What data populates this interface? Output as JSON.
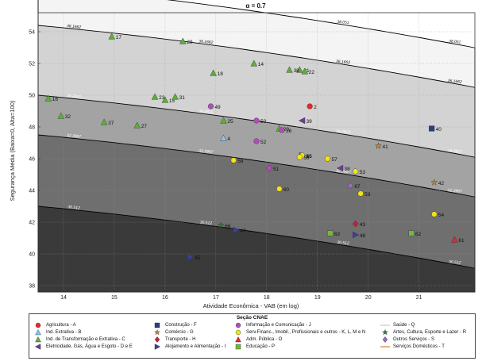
{
  "chart_data": {
    "type": "scatter",
    "title": "α = 0.7",
    "xlabel": "Atividade Econômica - VAB (em log)",
    "ylabel": "Segurança Média (Baixa=0, Alta=100)",
    "xlim": [
      13.5,
      22.1
    ],
    "ylim": [
      37.6,
      55.2
    ],
    "xticks": [
      14,
      15,
      16,
      17,
      18,
      19,
      20,
      21
    ],
    "yticks": [
      38,
      40,
      42,
      44,
      46,
      48,
      50,
      52,
      54
    ],
    "grid": true,
    "contours": [
      {
        "label": "38.051",
        "color": "#f4f4f4",
        "k": 0.3,
        "y0": 56.9
      },
      {
        "label": "36.1662",
        "color": "#d3d3d3",
        "k": 0.3,
        "y0": 54.4
      },
      {
        "label": "34.2815",
        "color": "#a3a3a3",
        "k": 0.3,
        "y0": 50.0
      },
      {
        "label": "32.3967",
        "color": "#6f6f6f",
        "k": 0.3,
        "y0": 47.5
      },
      {
        "label": "30.512",
        "color": "#3a3a3a",
        "k": 0.3,
        "y0": 43.0
      }
    ],
    "points": [
      {
        "id": "2",
        "x": 18.85,
        "y": 49.3,
        "sec": "A"
      },
      {
        "id": "4",
        "x": 17.15,
        "y": 47.3,
        "sec": "B"
      },
      {
        "id": "14",
        "x": 17.75,
        "y": 52.0,
        "sec": "C"
      },
      {
        "id": "15",
        "x": 16.0,
        "y": 49.7,
        "sec": "C"
      },
      {
        "id": "16",
        "x": 13.7,
        "y": 49.8,
        "sec": "C"
      },
      {
        "id": "17",
        "x": 14.95,
        "y": 53.7,
        "sec": "C"
      },
      {
        "id": "18",
        "x": 16.95,
        "y": 51.4,
        "sec": "C"
      },
      {
        "id": "20",
        "x": 18.25,
        "y": 47.9,
        "sec": "C"
      },
      {
        "id": "21",
        "x": 18.65,
        "y": 51.6,
        "sec": "C"
      },
      {
        "id": "22",
        "x": 18.75,
        "y": 51.5,
        "sec": "C"
      },
      {
        "id": "23",
        "x": 15.8,
        "y": 49.9,
        "sec": "C"
      },
      {
        "id": "25",
        "x": 17.15,
        "y": 48.4,
        "sec": "C"
      },
      {
        "id": "27",
        "x": 15.45,
        "y": 48.1,
        "sec": "C"
      },
      {
        "id": "29",
        "x": 16.35,
        "y": 53.4,
        "sec": "C"
      },
      {
        "id": "31",
        "x": 16.2,
        "y": 49.9,
        "sec": "C"
      },
      {
        "id": "32",
        "x": 13.95,
        "y": 48.7,
        "sec": "C"
      },
      {
        "id": "37",
        "x": 14.8,
        "y": 48.3,
        "sec": "C"
      },
      {
        "id": "38",
        "x": 18.45,
        "y": 51.6,
        "sec": "C"
      },
      {
        "id": "39",
        "x": 18.7,
        "y": 48.4,
        "sec": "D"
      },
      {
        "id": "40",
        "x": 21.25,
        "y": 47.9,
        "sec": "F"
      },
      {
        "id": "41",
        "x": 20.2,
        "y": 46.8,
        "sec": "G"
      },
      {
        "id": "42",
        "x": 21.3,
        "y": 44.5,
        "sec": "G"
      },
      {
        "id": "43",
        "x": 19.75,
        "y": 41.9,
        "sec": "H"
      },
      {
        "id": "45",
        "x": 16.5,
        "y": 39.8,
        "sec": "I"
      },
      {
        "id": "46",
        "x": 18.7,
        "y": 46.2,
        "sec": "I"
      },
      {
        "id": "47",
        "x": 17.4,
        "y": 41.5,
        "sec": "I"
      },
      {
        "id": "48",
        "x": 19.75,
        "y": 41.2,
        "sec": "I"
      },
      {
        "id": "49",
        "x": 16.9,
        "y": 49.3,
        "sec": "J"
      },
      {
        "id": "50",
        "x": 17.8,
        "y": 48.4,
        "sec": "J"
      },
      {
        "id": "51",
        "x": 18.05,
        "y": 45.4,
        "sec": "J"
      },
      {
        "id": "52",
        "x": 17.8,
        "y": 47.1,
        "sec": "J"
      },
      {
        "id": "53",
        "x": 19.75,
        "y": 45.2,
        "sec": "K"
      },
      {
        "id": "54",
        "x": 21.3,
        "y": 42.5,
        "sec": "K"
      },
      {
        "id": "55",
        "x": 18.7,
        "y": 46.2,
        "sec": "K"
      },
      {
        "id": "56",
        "x": 18.65,
        "y": 46.1,
        "sec": "K"
      },
      {
        "id": "57",
        "x": 19.2,
        "y": 46.0,
        "sec": "K"
      },
      {
        "id": "58",
        "x": 17.35,
        "y": 45.9,
        "sec": "K"
      },
      {
        "id": "59",
        "x": 19.85,
        "y": 43.8,
        "sec": "K"
      },
      {
        "id": "60",
        "x": 18.25,
        "y": 44.1,
        "sec": "K"
      },
      {
        "id": "61",
        "x": 21.7,
        "y": 40.9,
        "sec": "O"
      },
      {
        "id": "62",
        "x": 20.85,
        "y": 41.3,
        "sec": "P"
      },
      {
        "id": "63",
        "x": 19.25,
        "y": 41.3,
        "sec": "P"
      },
      {
        "id": "66",
        "x": 17.1,
        "y": 41.8,
        "sec": "R"
      },
      {
        "id": "67",
        "x": 19.65,
        "y": 44.3,
        "sec": "S"
      },
      {
        "id": "36",
        "x": 18.3,
        "y": 47.8,
        "sec": "J"
      },
      {
        "id": "38b",
        "x": 19.45,
        "y": 45.4,
        "sec": "D"
      }
    ],
    "legend": {
      "title": "Seção CNAE",
      "placement": "bottom",
      "entries": [
        {
          "code": "A",
          "label": "Agricultura - A",
          "marker": "circle",
          "color": "#e8262a"
        },
        {
          "code": "B",
          "label": "Ind. Extrativa - B",
          "marker": "triangle",
          "color": "#7fc8ec"
        },
        {
          "code": "C",
          "label": "Ind. de Transformação e Extrativa - C",
          "marker": "triangle",
          "color": "#5cb035"
        },
        {
          "code": "D",
          "label": "Eletricidade, Gás, Água e Esgoto - D e E",
          "marker": "triangle-left",
          "color": "#6a3d9a"
        },
        {
          "code": "F",
          "label": "Construção - F",
          "marker": "square",
          "color": "#2b3f7a"
        },
        {
          "code": "G",
          "label": "Comércio - G",
          "marker": "star",
          "color": "#d0842a"
        },
        {
          "code": "H",
          "label": "Transporte - H",
          "marker": "diamond",
          "color": "#c81d3d"
        },
        {
          "code": "I",
          "label": "Alojamento e Alimentação - I",
          "marker": "triangle-right",
          "color": "#3b3f9e"
        },
        {
          "code": "J",
          "label": "Informação e Comunicação - J",
          "marker": "circle",
          "color": "#b14dbb"
        },
        {
          "code": "K",
          "label": "Serv.Financ., Imobil., Profissionais e outros - K, L, M e N",
          "marker": "circle",
          "color": "#f2e218"
        },
        {
          "code": "O",
          "label": "Adm. Pública - O",
          "marker": "triangle",
          "color": "#e8262a"
        },
        {
          "code": "P",
          "label": "Educação - P",
          "marker": "square",
          "color": "#74b93c"
        },
        {
          "code": "Q",
          "label": "Saúde - Q",
          "marker": "line",
          "color": "#c8c8c8"
        },
        {
          "code": "R",
          "label": "Artes, Cultura, Esporte e Lazer - R",
          "marker": "star",
          "color": "#2f7a3a"
        },
        {
          "code": "S",
          "label": "Outros Serviços - S",
          "marker": "diamond",
          "color": "#9a6cc2"
        },
        {
          "code": "T",
          "label": "Serviços Domésticos - T",
          "marker": "line",
          "color": "#e07a2a"
        }
      ]
    }
  }
}
